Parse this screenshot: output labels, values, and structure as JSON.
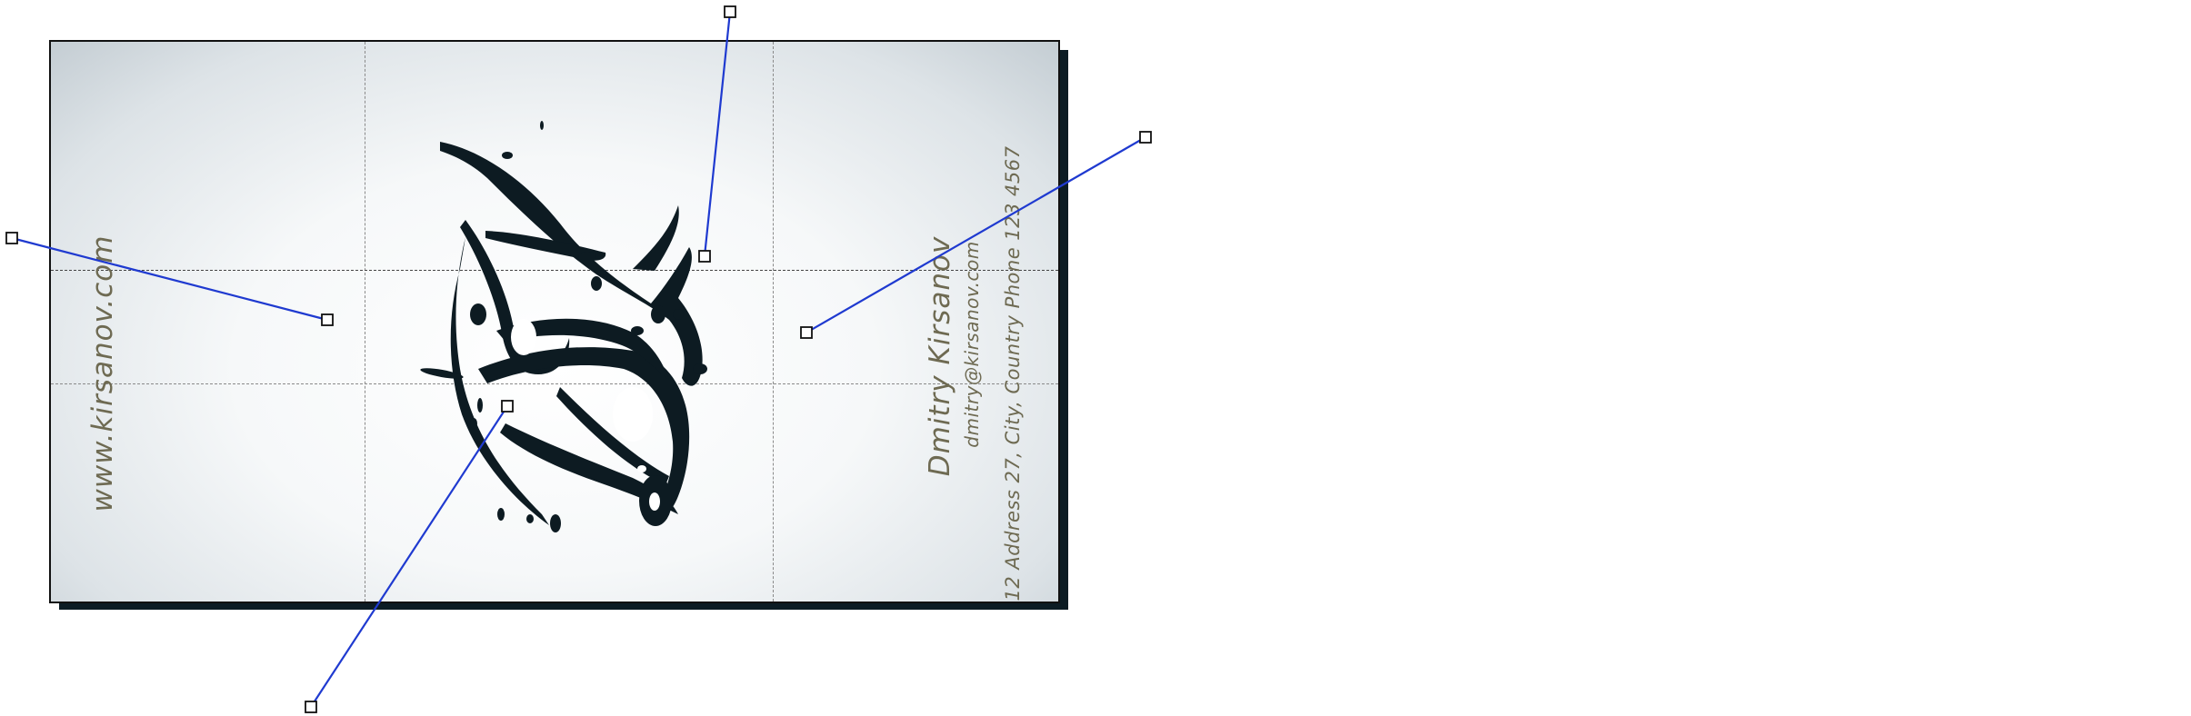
{
  "card": {
    "website": "www.kirsanov.com",
    "name": "Dmitry Kirsanov",
    "email": "dmitry@kirsanov.com",
    "address_phone": "12 Address 27, City, Country   Phone 123 4567"
  },
  "colors": {
    "card_text": "#6e6a52",
    "logo_ink": "#0d1b22",
    "shadow": "#0c1c24",
    "handle_line": "#1f3ad0",
    "guide": "#8a8a8a"
  },
  "logo": {
    "icon": "ink-splatter-logo-icon"
  },
  "handles": {
    "count": 5,
    "icon": "square-handle-icon"
  }
}
